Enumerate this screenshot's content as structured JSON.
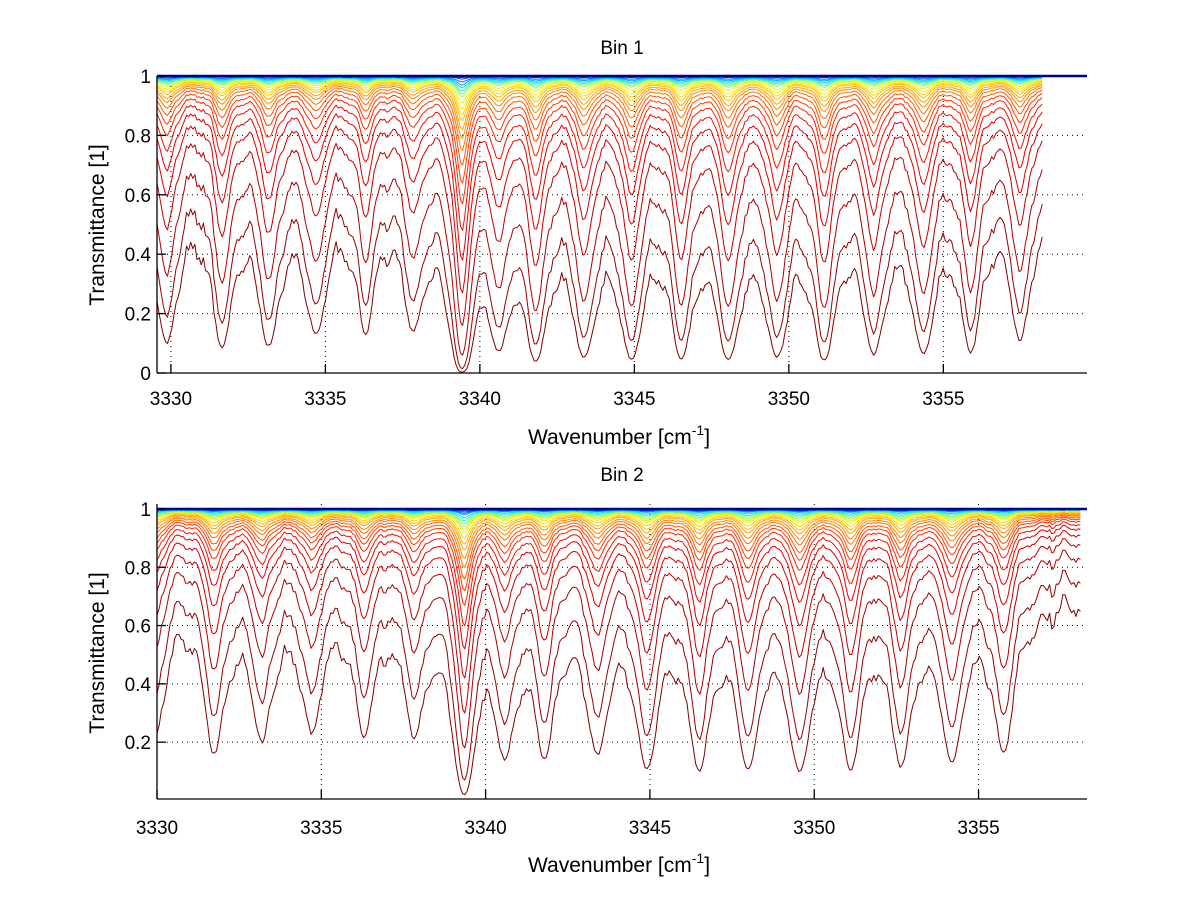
{
  "chart_data": [
    {
      "type": "line",
      "title": "Bin 1",
      "xlabel": "Wavenumber [cm",
      "xlabel_superscript": "-1",
      "xlabel_suffix": "]",
      "ylabel": "Transmittance [1]",
      "xlim": [
        3329.55,
        3359.65
      ],
      "ylim": [
        0,
        1
      ],
      "data_x_range": [
        3329.55,
        3358.2
      ],
      "grid": true,
      "xticks": [
        "3330",
        "3335",
        "3340",
        "3345",
        "3350",
        "3355"
      ],
      "xtick_values": [
        3330,
        3335,
        3340,
        3345,
        3350,
        3355
      ],
      "yticks": [
        "0",
        "0.2",
        "0.4",
        "0.6",
        "0.8",
        "1"
      ],
      "ytick_values": [
        0,
        0.2,
        0.4,
        0.6,
        0.8,
        1
      ],
      "absorption_lines_cm-1": [
        3329.87,
        3331.66,
        3333.18,
        3334.68,
        3336.3,
        3337.86,
        3339.42,
        3340.62,
        3341.82,
        3343.38,
        3344.9,
        3346.53,
        3348.05,
        3349.61,
        3351.14,
        3352.76,
        3354.35,
        3355.88,
        3357.5
      ],
      "line_strengths": [
        0.55,
        0.55,
        0.55,
        0.45,
        0.4,
        0.4,
        1.6,
        0.55,
        0.75,
        0.7,
        0.75,
        0.7,
        0.75,
        0.7,
        0.75,
        0.65,
        0.65,
        0.6,
        0.5
      ],
      "series_count": 26,
      "series_min_transmittance": [
        1.0,
        0.995,
        0.99,
        0.98,
        0.97,
        0.96,
        0.95,
        0.94,
        0.93,
        0.91,
        0.89,
        0.87,
        0.85,
        0.82,
        0.79,
        0.75,
        0.7,
        0.64,
        0.57,
        0.48,
        0.38,
        0.27,
        0.16,
        0.06,
        0.015,
        0.003
      ]
    },
    {
      "type": "line",
      "title": "Bin 2",
      "xlabel": "Wavenumber [cm",
      "xlabel_superscript": "-1",
      "xlabel_suffix": "]",
      "ylabel": "Transmittance [1]",
      "xlim": [
        3330,
        3358.3
      ],
      "ylim": [
        0.005,
        1.017
      ],
      "data_x_range": [
        3330,
        3358.1
      ],
      "grid": true,
      "xticks": [
        "3330",
        "3335",
        "3340",
        "3345",
        "3350",
        "3355"
      ],
      "xtick_values": [
        3330,
        3335,
        3340,
        3345,
        3350,
        3355
      ],
      "yticks": [
        "0.2",
        "0.4",
        "0.6",
        "0.8",
        "1"
      ],
      "ytick_values": [
        0.2,
        0.4,
        0.6,
        0.8,
        1
      ],
      "absorption_lines_cm-1": [
        3329.9,
        3331.75,
        3333.2,
        3334.7,
        3336.3,
        3337.85,
        3339.35,
        3340.6,
        3341.8,
        3343.4,
        3344.9,
        3346.5,
        3348.0,
        3349.55,
        3351.1,
        3352.65,
        3354.2,
        3355.75
      ],
      "line_strengths": [
        0.55,
        0.6,
        0.5,
        0.45,
        0.45,
        0.45,
        1.5,
        0.6,
        0.6,
        0.6,
        0.75,
        0.75,
        0.75,
        0.8,
        0.75,
        0.7,
        0.7,
        0.6
      ],
      "series_count": 26,
      "series_min_transmittance": [
        1.0,
        0.995,
        0.99,
        0.985,
        0.98,
        0.97,
        0.96,
        0.95,
        0.94,
        0.93,
        0.92,
        0.9,
        0.88,
        0.86,
        0.83,
        0.8,
        0.76,
        0.72,
        0.67,
        0.6,
        0.52,
        0.42,
        0.3,
        0.18,
        0.07,
        0.02
      ]
    }
  ],
  "colors": {
    "colormap": [
      "#00008f",
      "#0050ff",
      "#00dfff",
      "#8fff70",
      "#ffef00",
      "#ffb000",
      "#ff7000",
      "#ff3000",
      "#e60000",
      "#b40000",
      "#800000"
    ],
    "axis": "#000000",
    "background": "#ffffff"
  }
}
